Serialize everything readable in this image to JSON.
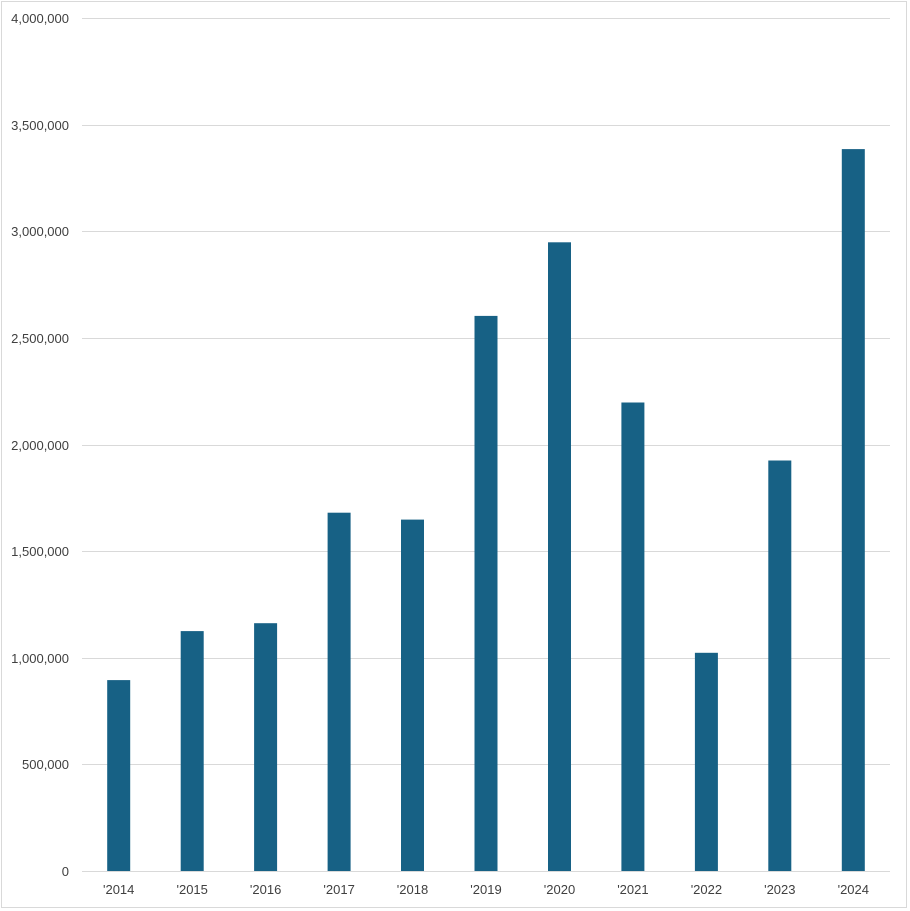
{
  "chart_data": {
    "type": "bar",
    "title": "",
    "xlabel": "",
    "ylabel": "",
    "categories": [
      "'2014",
      "'2015",
      "'2016",
      "'2017",
      "'2018",
      "'2019",
      "'2020",
      "'2021",
      "'2022",
      "'2023",
      "'2024"
    ],
    "values": [
      895000,
      1125000,
      1162000,
      1680000,
      1648000,
      2603000,
      2948000,
      2197000,
      1023000,
      1925000,
      3385000
    ],
    "ylim": [
      0,
      4000000
    ],
    "yticks": [
      0,
      500000,
      1000000,
      1500000,
      2000000,
      2500000,
      3000000,
      3500000,
      4000000
    ],
    "ytick_labels": [
      "0",
      "500,000",
      "1,000,000",
      "1,500,000",
      "2,000,000",
      "2,500,000",
      "3,000,000",
      "3,500,000",
      "4,000,000"
    ],
    "grid": true,
    "legend": "none",
    "bar_color": "#176185"
  }
}
